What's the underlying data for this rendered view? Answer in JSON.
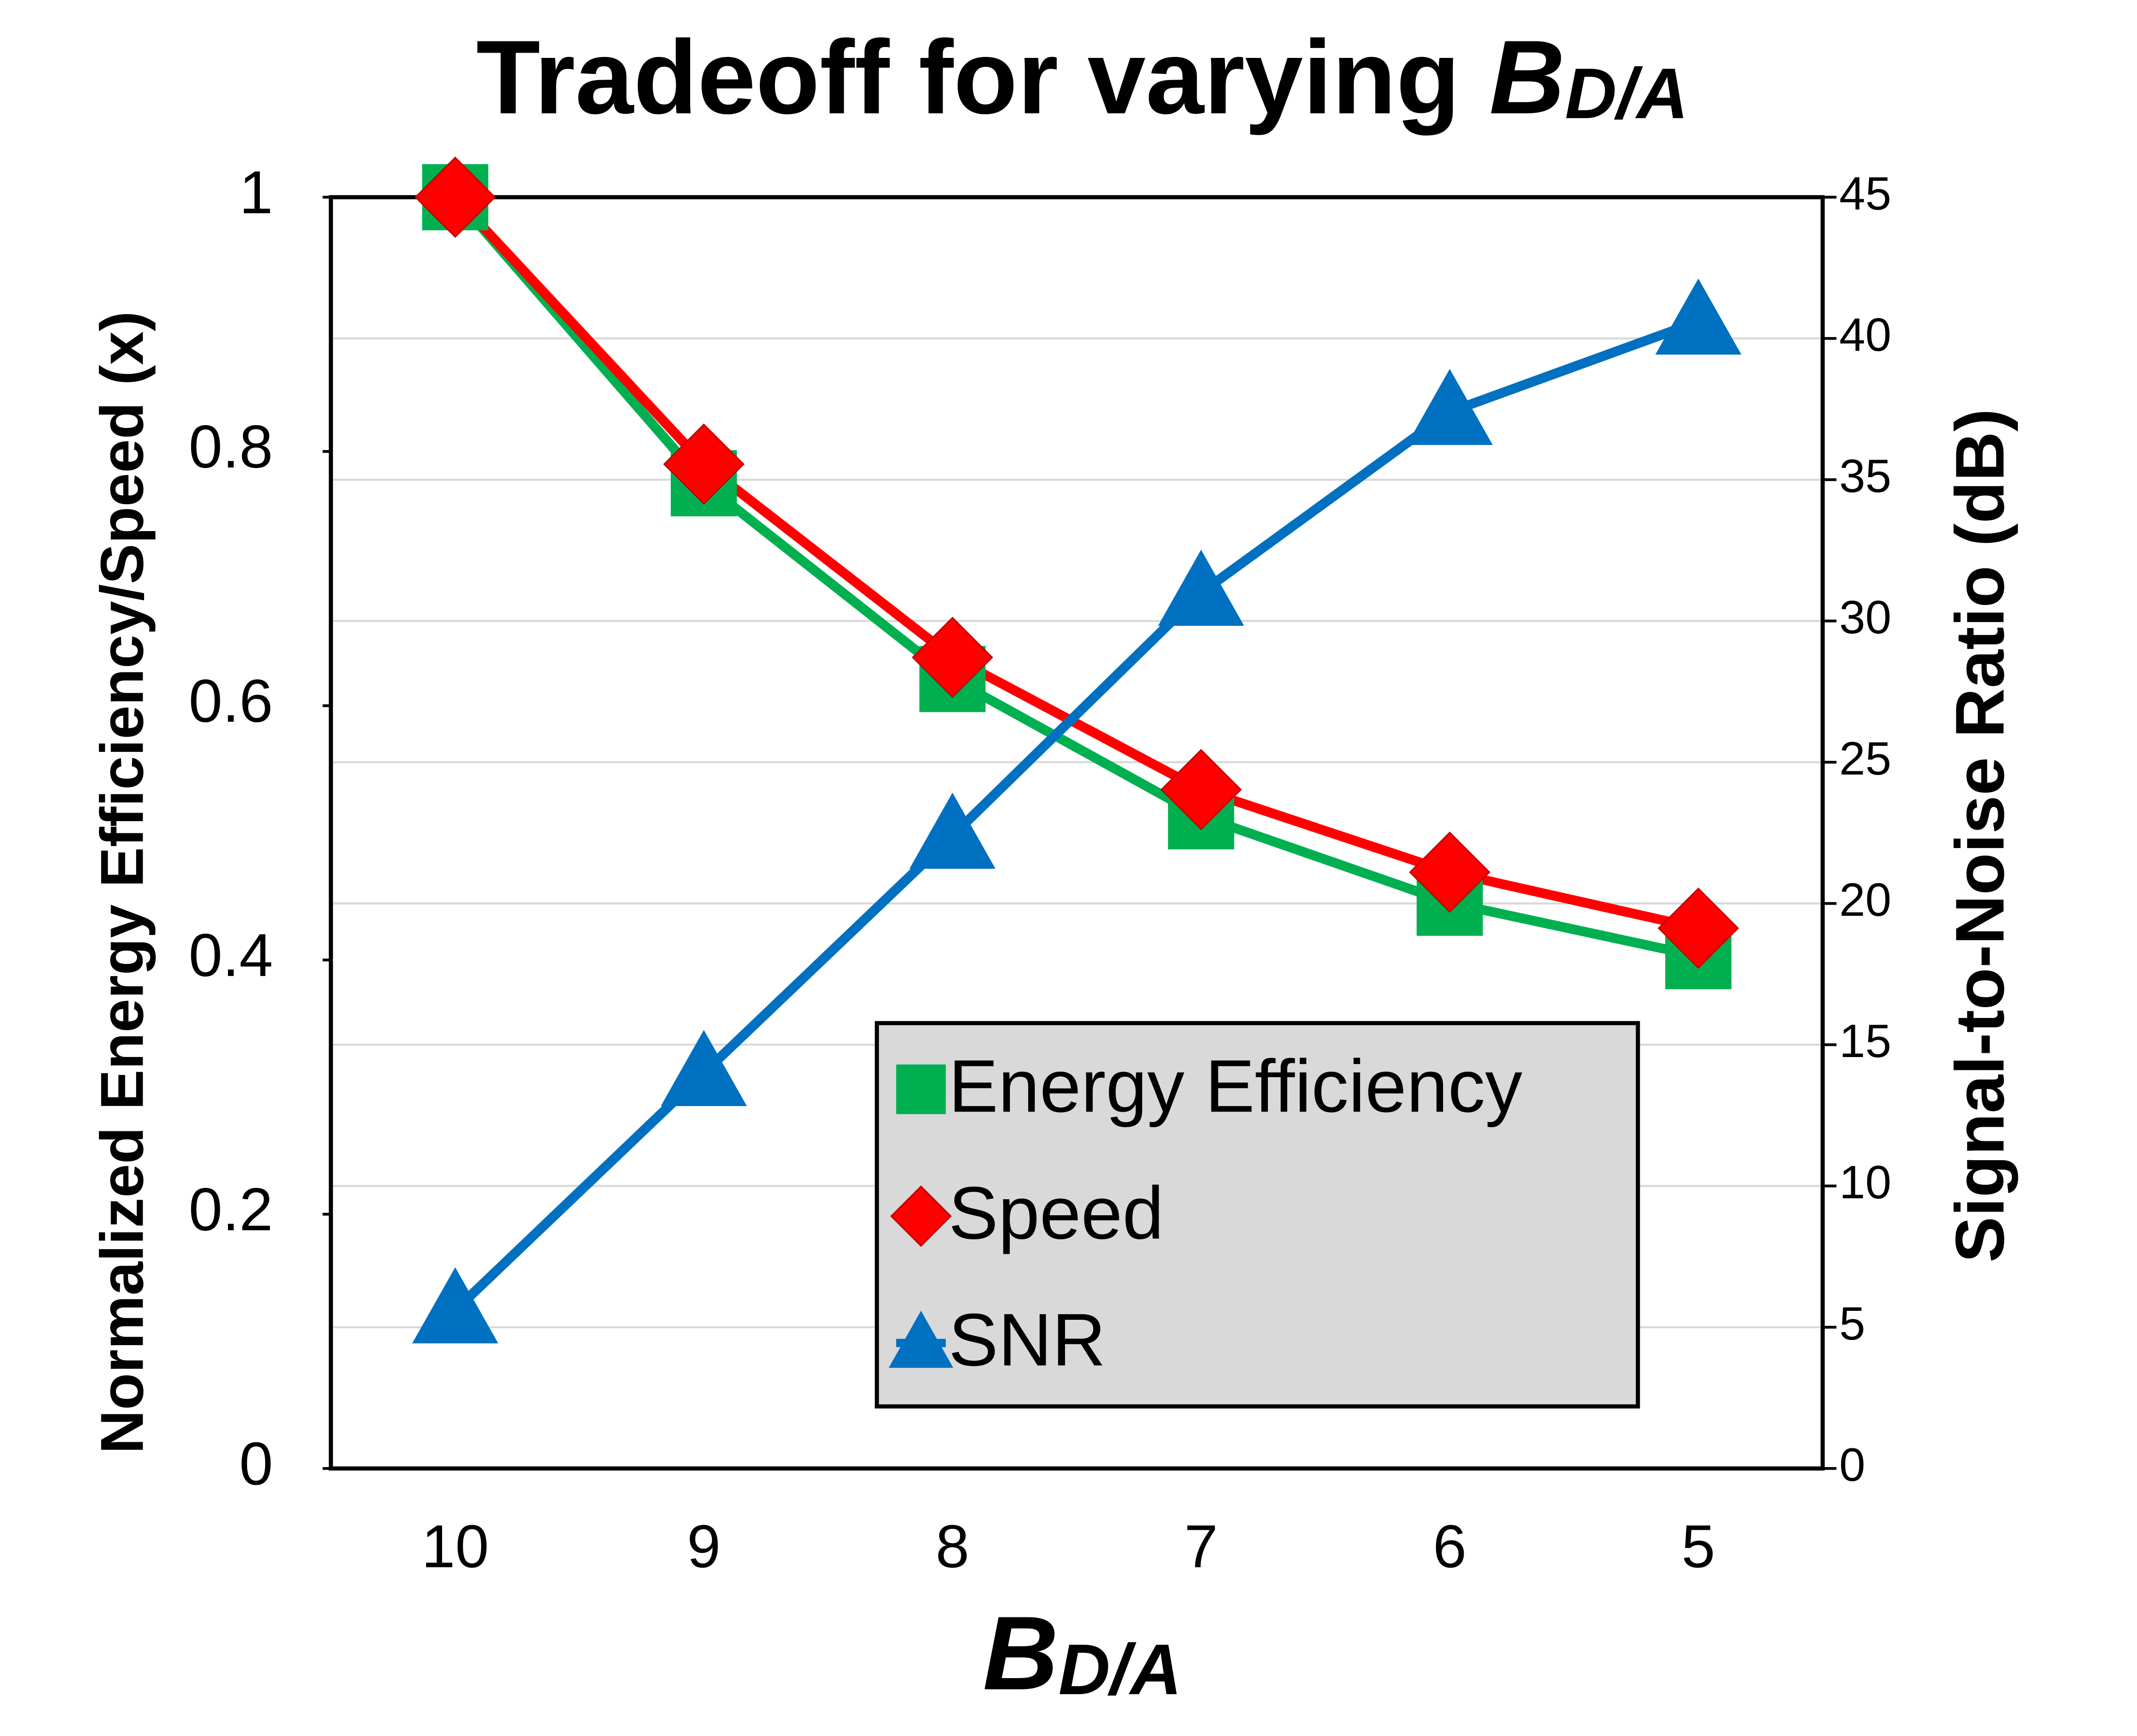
{
  "chart_data": {
    "type": "line",
    "title": {
      "text": "Tradeoff for varying",
      "symbol": "B",
      "subscript": "D/A"
    },
    "x_label": {
      "symbol": "B",
      "subscript": "D/A"
    },
    "y_label": "Normalized Energy Efficiency/Speed (x)",
    "y2_label": "Signal-to-Noise Ratio (dB)",
    "categories": [
      "10",
      "9",
      "8",
      "7",
      "6",
      "5"
    ],
    "ylim": [
      0,
      1
    ],
    "yticks": [
      0,
      0.2,
      0.4,
      0.6,
      0.8,
      1
    ],
    "y2lim": [
      0,
      45
    ],
    "y2ticks": [
      0,
      5,
      10,
      15,
      20,
      25,
      30,
      35,
      40,
      45
    ],
    "grid": true,
    "legend": "lower right",
    "series": [
      {
        "name": "Energy Efficiency",
        "color": "#00b050",
        "marker": "square",
        "values": [
          1.0,
          0.775,
          0.621,
          0.513,
          0.445,
          0.403
        ]
      },
      {
        "name": "Speed",
        "color": "#ff0000",
        "marker": "diamond",
        "values": [
          1.0,
          0.79,
          0.638,
          0.534,
          0.469,
          0.425
        ]
      },
      {
        "name": "SNR",
        "color": "#0070c0",
        "marker": "triangle",
        "axis": "y2",
        "values": [
          5.6,
          14.0,
          22.4,
          31.0,
          37.4,
          40.6
        ]
      }
    ]
  }
}
